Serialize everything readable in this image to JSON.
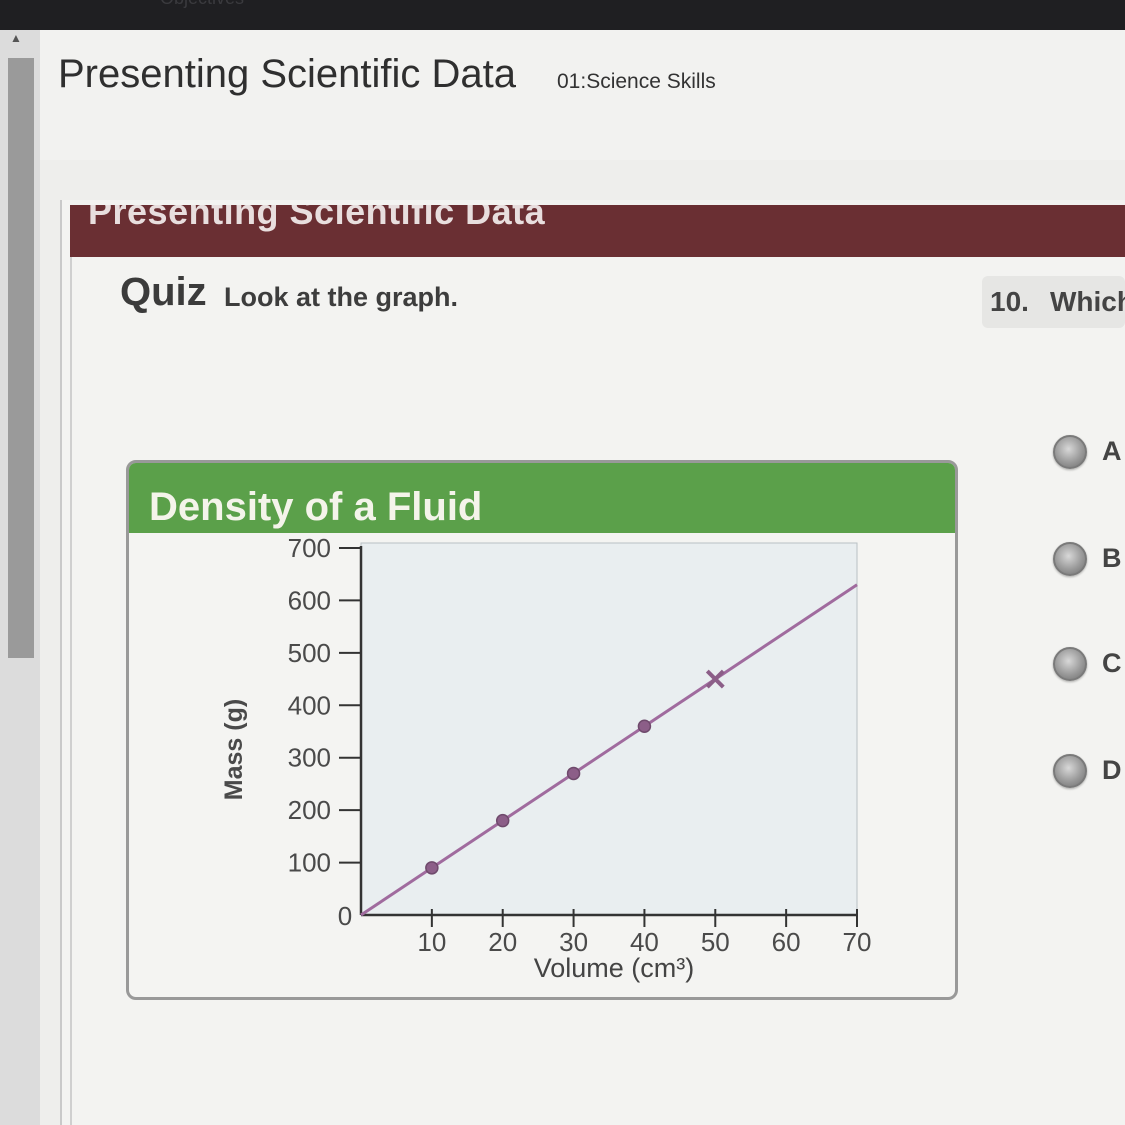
{
  "window": {
    "top_bar_label": "Objectives"
  },
  "header": {
    "title": "Presenting Scientific Data",
    "subtitle": "01:Science Skills"
  },
  "banner": {
    "text": "Presenting Scientific Data"
  },
  "quiz": {
    "title": "Quiz",
    "instruction": "Look at the graph.",
    "question_number": "10.",
    "question_text": "Which",
    "options": [
      {
        "letter": "A"
      },
      {
        "letter": "B"
      },
      {
        "letter": "C"
      },
      {
        "letter": "D"
      }
    ]
  },
  "colors": {
    "banner": "#6a2f33",
    "chart_title_bar": "#5ba04a",
    "plot_background": "#e9eef0",
    "line": "#a06b9e",
    "marker": "#8c5e88"
  },
  "chart_data": {
    "type": "line",
    "title": "Density of a Fluid",
    "xlabel": "Volume (cm³)",
    "ylabel": "Mass (g)",
    "xlim": [
      0,
      70
    ],
    "ylim": [
      0,
      700
    ],
    "x_ticks": [
      10,
      20,
      30,
      40,
      50,
      60,
      70
    ],
    "y_ticks": [
      100,
      200,
      300,
      400,
      500,
      600,
      700
    ],
    "origin_label": "0",
    "grid": false,
    "line": {
      "x": [
        0,
        70
      ],
      "y": [
        0,
        630
      ]
    },
    "points": [
      {
        "x": 10,
        "y": 90,
        "marker": "circle"
      },
      {
        "x": 20,
        "y": 180,
        "marker": "circle"
      },
      {
        "x": 30,
        "y": 270,
        "marker": "circle"
      },
      {
        "x": 40,
        "y": 360,
        "marker": "circle"
      },
      {
        "x": 50,
        "y": 450,
        "marker": "x"
      }
    ]
  }
}
